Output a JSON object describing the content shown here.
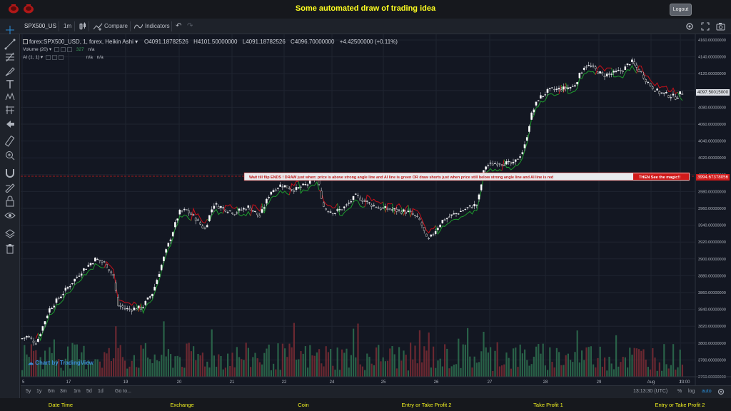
{
  "header": {
    "title": "Some automated draw of trading idea",
    "logout_label": "Logout"
  },
  "toolbar": {
    "symbol": "SPX500_US",
    "interval": "1m",
    "compare_label": "Compare",
    "indicators_label": "Indicators"
  },
  "legend": {
    "series_title": "forex:SPX500_USD, 1, forex, Heikin Ashi",
    "open": "4091.18782526",
    "high": "4101.50000000",
    "low": "4091.18782526",
    "close": "4096.70000000",
    "change": "+4.42500000 (+0.11%)",
    "volume_label": "Volume (20)",
    "volume_value": "327",
    "volume_extra": "n/a",
    "ai_label": "AI (1, 1)",
    "ai_val1": "n/a",
    "ai_val2": "n/a"
  },
  "annotation": {
    "text": "Wait till flip ENDS  !   DRAW just when:  price is above strong angle line and AI line is green         OR          draw shorts just when price still below strong angle line and AI line is red",
    "tag": "THEN See the magic!!"
  },
  "watermark": "Chart by TradingView",
  "price_tags": {
    "current": "4097.50015000",
    "line": "3994.67378056"
  },
  "price_axis": [
    "4160.00000000",
    "4140.00000000",
    "4120.00000000",
    "4100.00000000",
    "4080.00000000",
    "4060.00000000",
    "4040.00000000",
    "4020.00000000",
    "4000.00000000",
    "3980.00000000",
    "3960.00000000",
    "3940.00000000",
    "3920.00000000",
    "3900.00000000",
    "3880.00000000",
    "3860.00000000",
    "3840.00000000",
    "3820.00000000",
    "3800.00000000",
    "3780.00000000",
    "3760.00000000"
  ],
  "time_axis": [
    "5",
    "17",
    "19",
    "20",
    "21",
    "22",
    "24",
    "25",
    "26",
    "27",
    "28",
    "29",
    "Aug",
    "2",
    "13:00"
  ],
  "range_bar": {
    "ranges": [
      "5y",
      "1y",
      "6m",
      "3m",
      "1m",
      "5d",
      "1d"
    ],
    "goto": "Go to...",
    "time": "13:13:30 (UTC)",
    "percent": "%",
    "log": "log",
    "auto": "auto"
  },
  "footer": [
    "Date Time",
    "Exchange",
    "Coin",
    "Entry or Take Profit 2",
    "Take Profit 1",
    "Entry or Take Profit 2"
  ],
  "colors": {
    "background": "#131722",
    "up": "#ffffff",
    "down": "#1a1a1a",
    "ai_green": "#1e9c2e",
    "ai_red": "#c8101a",
    "vol_up": "#2e6e4f",
    "vol_down": "#7a2c34",
    "title": "#ffff20"
  }
}
